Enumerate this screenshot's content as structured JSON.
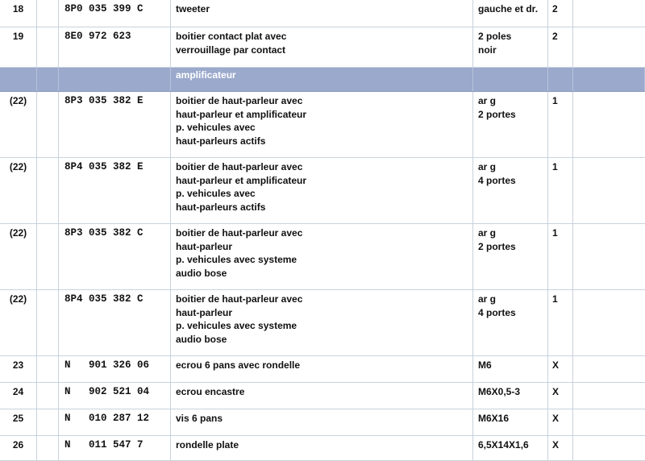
{
  "table": {
    "rows": [
      {
        "pos": "18",
        "part": "8P0 035 399 C",
        "desc": [
          "tweeter"
        ],
        "remark": [
          "gauche et dr."
        ],
        "qty": "2"
      },
      {
        "pos": "19",
        "part": "8E0 972 623",
        "desc": [
          "boitier contact plat avec",
          "verrouillage par contact"
        ],
        "remark": [
          "2 poles",
          "noir"
        ],
        "qty": "2"
      },
      {
        "section": "amplificateur"
      },
      {
        "pos": "(22)",
        "part": "8P3 035 382 E",
        "desc": [
          "boitier de haut-parleur avec",
          "haut-parleur et amplificateur",
          "p. vehicules avec",
          "haut-parleurs actifs"
        ],
        "remark": [
          "ar g",
          "2 portes"
        ],
        "qty": "1"
      },
      {
        "pos": "(22)",
        "part": "8P4 035 382 E",
        "desc": [
          "boitier de haut-parleur avec",
          "haut-parleur et amplificateur",
          "p. vehicules avec",
          "haut-parleurs actifs"
        ],
        "remark": [
          "ar g",
          "4 portes"
        ],
        "qty": "1"
      },
      {
        "pos": "(22)",
        "part": "8P3 035 382 C",
        "desc": [
          "boitier de haut-parleur avec",
          "haut-parleur",
          "p. vehicules avec systeme",
          "audio bose"
        ],
        "remark": [
          "ar g",
          "2 portes"
        ],
        "qty": "1"
      },
      {
        "pos": "(22)",
        "part": "8P4 035 382 C",
        "desc": [
          "boitier de haut-parleur avec",
          "haut-parleur",
          "p. vehicules avec systeme",
          "audio bose"
        ],
        "remark": [
          "ar g",
          "4 portes"
        ],
        "qty": "1"
      },
      {
        "pos": "23",
        "part": "N   901 326 06",
        "desc": [
          "ecrou 6 pans avec rondelle"
        ],
        "remark": [
          "M6"
        ],
        "qty": "X"
      },
      {
        "pos": "24",
        "part": "N   902 521 04",
        "desc": [
          "ecrou encastre"
        ],
        "remark": [
          "M6X0,5-3"
        ],
        "qty": "X"
      },
      {
        "pos": "25",
        "part": "N   010 287 12",
        "desc": [
          "vis 6 pans"
        ],
        "remark": [
          "M6X16"
        ],
        "qty": "X"
      },
      {
        "pos": "26",
        "part": "N   011 547 7",
        "desc": [
          "rondelle plate"
        ],
        "remark": [
          "6,5X14X1,6"
        ],
        "qty": "X"
      }
    ]
  }
}
